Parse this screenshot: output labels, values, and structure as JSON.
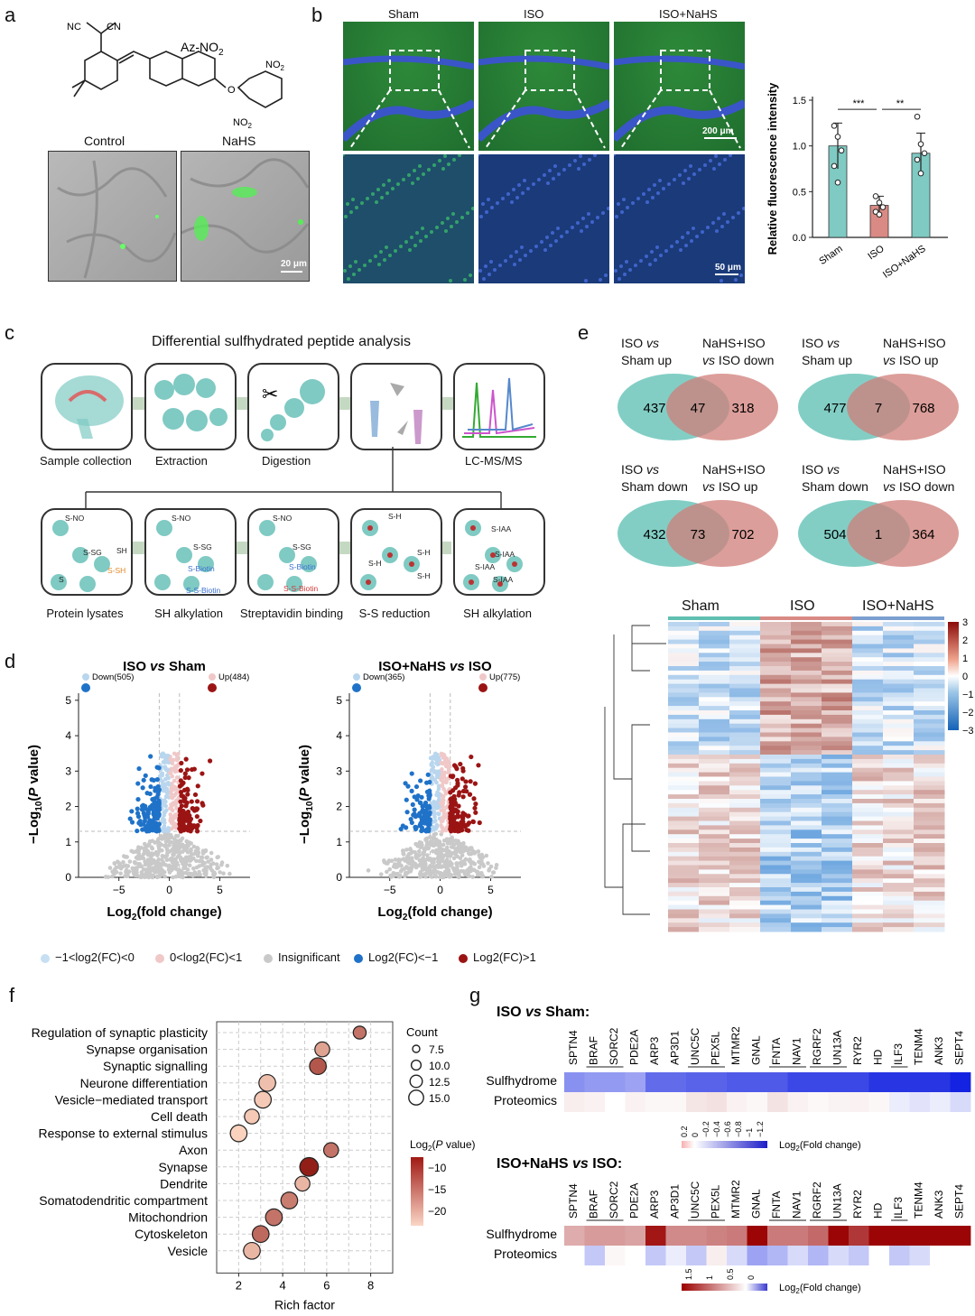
{
  "panels": {
    "a": "a",
    "b": "b",
    "c": "c",
    "d": "d",
    "e": "e",
    "f": "f",
    "g": "g"
  },
  "a": {
    "probe_name": "Az-NO",
    "probe_sub": "2",
    "nc1": "NC",
    "nc2": "CN",
    "no2_top": "NO",
    "no2_bottom": "NO",
    "no2_sub": "2",
    "o": "O",
    "labels": [
      "Control",
      "NaHS"
    ],
    "scalebar": "20 μm"
  },
  "b": {
    "groups": [
      "Sham",
      "ISO",
      "ISO+NaHS"
    ],
    "scalebar_top": "200 μm",
    "scalebar_bottom": "50 μm"
  },
  "b_chart": {
    "chart_data": {
      "type": "bar",
      "categories": [
        "Sham",
        "ISO",
        "ISO+NaHS"
      ],
      "values": [
        1.0,
        0.35,
        0.92
      ],
      "errors": [
        0.25,
        0.1,
        0.22
      ],
      "points": [
        [
          1.22,
          1.1,
          0.95,
          0.78,
          0.6
        ],
        [
          0.45,
          0.38,
          0.33,
          0.28,
          0.25
        ],
        [
          1.32,
          1.02,
          0.92,
          0.85,
          0.7
        ]
      ],
      "ylabel": "Relative fluorescence intensity",
      "ylim": [
        0,
        1.5
      ],
      "yticks": [
        "0.0",
        "0.5",
        "1.0",
        "1.5"
      ],
      "sig": [
        "***",
        "**"
      ],
      "colors": [
        "#7fcac3",
        "#d98a84",
        "#7fcac3"
      ]
    }
  },
  "c": {
    "title": "Differential sulfhydrated peptide analysis",
    "top_steps": [
      "Sample collection",
      "Extraction",
      "Digestion",
      "LC-MS/MS"
    ],
    "bottom_steps": [
      "Protein lysates",
      "SH alkylation",
      "Streptavidin binding",
      "S-S reduction",
      "SH alkylation"
    ],
    "labels": {
      "sno": "S-NO",
      "ssg": "S-SG",
      "sh": "SH",
      "ssh": "S-SH",
      "s": "S",
      "biotin": "S-Biotin",
      "ssbiotin": "S-S-Biotin",
      "s_h": "S-H",
      "siaa": "S-IAA"
    }
  },
  "d": {
    "plots": [
      {
        "title_a": "ISO ",
        "title_vs": "vs",
        "title_b": " Sham",
        "down": "Down(505)",
        "up": "Up(484)"
      },
      {
        "title_a": "ISO+NaHS ",
        "title_vs": "vs",
        "title_b": " ISO",
        "down": "Down(365)",
        "up": "Up(775)"
      }
    ],
    "xlabel": "Log",
    "xlabel_sub": "2",
    "xlabel_tail": "(fold change)",
    "ylabel_a": "−Log",
    "ylabel_sub": "10",
    "ylabel_b": "(",
    "ylabel_p": "P",
    "ylabel_c": " value)",
    "xticks": [
      "−5",
      "0",
      "5"
    ],
    "yticks": [
      "0",
      "1",
      "2",
      "3",
      "4",
      "5"
    ],
    "legend": [
      "−1<log2(FC)<0",
      "0<log2(FC)<1",
      "Insignificant",
      "Log2(FC)<−1",
      "Log2(FC)>1"
    ],
    "chart_data": [
      {
        "type": "scatter",
        "title": "ISO vs Sham",
        "down_count": 505,
        "up_count": 484,
        "xlim": [
          -9,
          8
        ],
        "ylim": [
          0,
          5.2
        ],
        "threshold_y": 1.3
      },
      {
        "type": "scatter",
        "title": "ISO+NaHS vs ISO",
        "down_count": 365,
        "up_count": 775,
        "xlim": [
          -9,
          8
        ],
        "ylim": [
          0,
          5.2
        ],
        "threshold_y": 1.3
      }
    ]
  },
  "e": {
    "venns": [
      {
        "left_a": "ISO ",
        "left_vs": "vs",
        "left_b": "Sham up",
        "right_a": "NaHS+ISO",
        "right_vs": "vs",
        "right_b": " ISO down",
        "n_left": "437",
        "n_mid": "47",
        "n_right": "318"
      },
      {
        "left_a": "ISO ",
        "left_vs": "vs",
        "left_b": "Sham up",
        "right_a": "NaHS+ISO",
        "right_vs": "vs",
        "right_b": " ISO up",
        "n_left": "477",
        "n_mid": "7",
        "n_right": "768"
      },
      {
        "left_a": "ISO ",
        "left_vs": "vs",
        "left_b": "Sham down",
        "right_a": "NaHS+ISO",
        "right_vs": "vs",
        "right_b": " ISO up",
        "n_left": "432",
        "n_mid": "73",
        "n_right": "702"
      },
      {
        "left_a": "ISO ",
        "left_vs": "vs",
        "left_b": "Sham down",
        "right_a": "NaHS+ISO",
        "right_vs": "vs",
        "right_b": " ISO down",
        "n_left": "504",
        "n_mid": "1",
        "n_right": "364"
      }
    ],
    "heatmap_groups": [
      "Sham",
      "ISO",
      "ISO+NaHS"
    ],
    "scale_ticks": [
      "3",
      "2",
      "1",
      "0",
      "−1",
      "−2",
      "−3"
    ],
    "group_colors": [
      "#5fbfb0",
      "#d98a84",
      "#7b9fd0"
    ]
  },
  "f": {
    "chart_data": {
      "type": "scatter",
      "categories": [
        "Regulation of synaptic plasticity",
        "Synapse organisation",
        "Synaptic signalling",
        "Neurone differentiation",
        "Vesicle−mediated transport",
        "Cell death",
        "Response to external stimulus",
        "Axon",
        "Synapse",
        "Dendrite",
        "Somatodendritic compartment",
        "Mitochondrion",
        "Cytoskeleton",
        "Vesicle"
      ],
      "rich_factor": [
        7.5,
        5.8,
        5.6,
        3.3,
        3.1,
        2.6,
        2.0,
        6.2,
        5.2,
        4.9,
        4.3,
        3.6,
        3.0,
        2.6
      ],
      "log2_p": [
        -14,
        -9,
        -17,
        -6,
        -5,
        -5,
        -4,
        -14,
        -23,
        -7,
        -13,
        -14,
        -15,
        -7
      ],
      "count": [
        7.5,
        10,
        12.5,
        12.5,
        12.5,
        10,
        12.5,
        10,
        15,
        10,
        12.5,
        12.5,
        12.5,
        12.5
      ],
      "xlabel": "Rich factor",
      "xlim": [
        1,
        9
      ],
      "xticks": [
        "2",
        "4",
        "6",
        "8"
      ],
      "count_title": "Count",
      "count_ticks": [
        "7.5",
        "10.0",
        "12.5",
        "15.0"
      ],
      "color_title": "Log",
      "color_title_sub": "2",
      "color_title_p": "P",
      "color_ticks": [
        "−10",
        "−15",
        "−20"
      ]
    }
  },
  "g": {
    "genes": [
      "SPTN4",
      "BRAF",
      "SORC2",
      "PDE2A",
      "ARP3",
      "AP3D1",
      "UNC5C",
      "PEX5L",
      "MTMR2",
      "GNAL",
      "FNTA",
      "NAV1",
      "RGRF2",
      "UN13A",
      "RYR2",
      "HD",
      "ILF3",
      "TENM4",
      "ANK3",
      "SEPT4"
    ],
    "row_labels": [
      "Sulfhydrome",
      "Proteomics"
    ],
    "title1_a": "ISO ",
    "title1_vs": "vs",
    "title1_b": " Sham:",
    "title2_a": "ISO+NaHS ",
    "title2_vs": "vs",
    "title2_b": " ISO:",
    "scale1_ticks": [
      "0.2",
      "0",
      "−0.2",
      "−0.4",
      "−0.6",
      "−0.8",
      "−1",
      "−1.2"
    ],
    "scale2_ticks": [
      "1.5",
      "1",
      "0.5",
      "0"
    ],
    "scale_label": "Log",
    "scale_label_sub": "2",
    "scale_label_tail": "(Fold change)",
    "chart_data": [
      {
        "type": "heatmap",
        "title": "ISO vs Sham",
        "sulfhydrome": [
          -0.6,
          -0.55,
          -0.55,
          -0.5,
          -0.8,
          -0.8,
          -0.85,
          -0.85,
          -0.9,
          -0.9,
          -0.9,
          -1.0,
          -1.0,
          -1.0,
          -1.0,
          -1.1,
          -1.1,
          -1.1,
          -1.1,
          -1.2
        ],
        "proteomics": [
          0.1,
          0.08,
          0.0,
          0.08,
          0.05,
          0.05,
          0.15,
          0.18,
          0.08,
          0.05,
          0.17,
          0.08,
          0.04,
          0.07,
          0.08,
          0.05,
          -0.1,
          -0.15,
          -0.1,
          -0.2
        ]
      },
      {
        "type": "heatmap",
        "title": "ISO+NaHS vs ISO",
        "sulfhydrome": [
          0.5,
          0.6,
          0.6,
          0.55,
          1.4,
          0.7,
          0.7,
          0.75,
          0.8,
          1.5,
          0.8,
          0.8,
          0.9,
          1.5,
          1.2,
          1.5,
          1.5,
          1.5,
          1.5,
          1.5
        ],
        "proteomics": [
          0.0,
          -0.3,
          0.05,
          0.0,
          -0.3,
          -0.1,
          -0.3,
          0.1,
          -0.2,
          -0.5,
          -0.4,
          -0.2,
          -0.4,
          -0.2,
          -0.3,
          0.0,
          -0.3,
          -0.2,
          0.0,
          0.0
        ]
      }
    ]
  }
}
